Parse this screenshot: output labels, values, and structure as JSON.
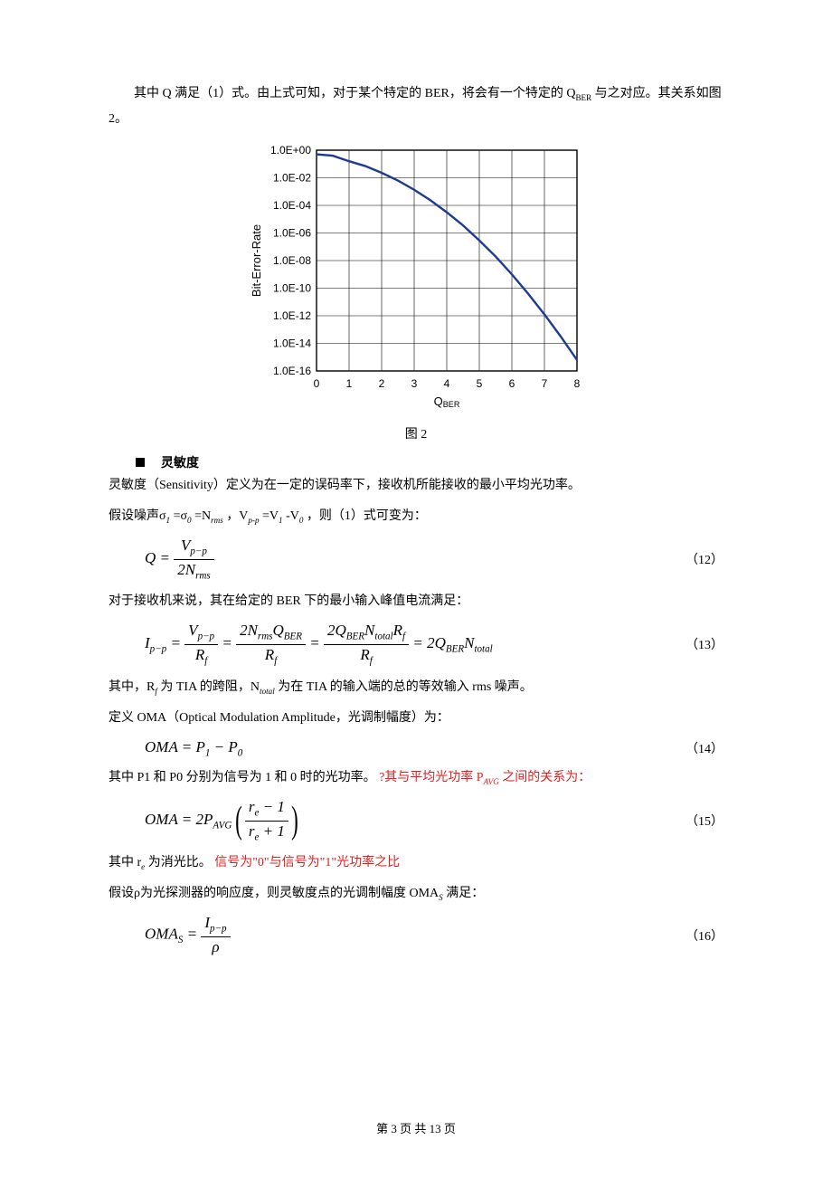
{
  "intro_text_a": "其中 Q 满足（1）式。由上式可知，对于某个特定的 BER，将会有一个特定的 Q",
  "intro_text_b": " 与之对应。其关系如图 2。",
  "figure": {
    "caption": "图 2",
    "chart": {
      "type": "line",
      "ylabel": "Bit-Error-Rate",
      "xlabel": "Q",
      "xlabel_sub": "BER",
      "label_fontsize": 13,
      "tick_fontsize": 12,
      "line_color": "#1f3a93",
      "line_width": 2.4,
      "grid_color": "#000000",
      "grid_width": 0.6,
      "background_color": "#ffffff",
      "xlim": [
        0,
        8
      ],
      "xtick_step": 1,
      "ylim_exp": [
        -16,
        0
      ],
      "ytick_labels": [
        "1.0E+00",
        "1.0E-02",
        "1.0E-04",
        "1.0E-06",
        "1.0E-08",
        "1.0E-10",
        "1.0E-12",
        "1.0E-14",
        "1.0E-16"
      ],
      "data_exp": [
        [
          0.0,
          -0.3
        ],
        [
          0.5,
          -0.4
        ],
        [
          1.0,
          -0.8
        ],
        [
          1.5,
          -1.15
        ],
        [
          2.0,
          -1.64
        ],
        [
          2.5,
          -2.2
        ],
        [
          3.0,
          -2.87
        ],
        [
          3.5,
          -3.63
        ],
        [
          4.0,
          -4.5
        ],
        [
          4.5,
          -5.45
        ],
        [
          5.0,
          -6.54
        ],
        [
          5.5,
          -7.7
        ],
        [
          6.0,
          -9.0
        ],
        [
          6.5,
          -10.4
        ],
        [
          7.0,
          -11.9
        ],
        [
          7.5,
          -13.5
        ],
        [
          8.0,
          -15.2
        ]
      ]
    }
  },
  "section_sensitivity_title": "灵敏度",
  "p_sens_def": "灵敏度（Sensitivity）定义为在一定的误码率下，接收机所能接收的最小平均光功率。",
  "p_assume_a": "假设噪声σ",
  "p_assume_b": "=σ",
  "p_assume_c": "=N",
  "p_assume_d": "，V",
  "p_assume_e": "=V",
  "p_assume_f": "-V",
  "p_assume_g": "，则（1）式可变为：",
  "eq12": {
    "num": "（12）"
  },
  "p_after12": "对于接收机来说，其在给定的 BER 下的最小输入峰值电流满足：",
  "eq13": {
    "num": "（13）"
  },
  "p_after13_a": "其中，R",
  "p_after13_b": " 为 TIA 的跨阻，N",
  "p_after13_c": " 为在 TIA 的输入端的总的等效输入 rms 噪声。",
  "p_oma_def": "定义 OMA（Optical Modulation Amplitude，光调制幅度）为：",
  "eq14": {
    "num": "（14）"
  },
  "p_after14_a": "其中 P1 和 P0 分别为信号为 1 和 0 时的光功率。",
  "p_after14_red_a": "?其与平均光功率 P",
  "p_after14_red_b": " 之间的关系为：",
  "eq15": {
    "num": "（15）"
  },
  "p_after15_a": "其中 r",
  "p_after15_b": " 为消光比。",
  "p_after15_red": "信号为\"0\"与信号为\"1\"光功率之比",
  "p_rho": "假设ρ为光探测器的响应度，则灵敏度点的光调制幅度 OMA",
  "p_rho_b": " 满足：",
  "eq16": {
    "num": "（16）"
  },
  "footer": "第 3 页 共 13 页"
}
